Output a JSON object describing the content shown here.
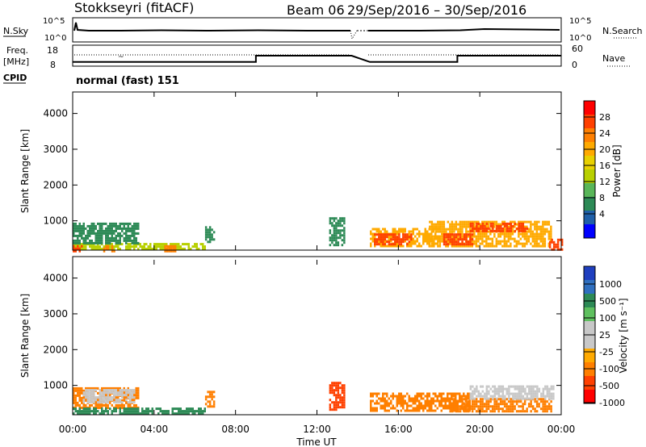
{
  "header": {
    "title": "Stokkseyri (fitACF)",
    "beam": "Beam 06",
    "date_range": "29/Sep/2016 – 30/Sep/2016"
  },
  "nsky_panel": {
    "left_label": "N.Sky",
    "left_ticks": [
      "10^5",
      "10^0"
    ],
    "right_ticks": [
      "10^5",
      "10^0"
    ],
    "right_label": "N.Search"
  },
  "freq_panel": {
    "left_label_1": "Freq.",
    "left_label_2": "[MHz]",
    "left_ticks": [
      "18",
      "8"
    ],
    "right_ticks": [
      "60",
      "0"
    ],
    "right_label": "Nave",
    "cpid_label": "CPID",
    "cpid_text": "normal (fast) 151"
  },
  "power_panel": {
    "ylabel": "Slant Range [km]",
    "yticks": [
      "4000",
      "3000",
      "2000",
      "1000"
    ],
    "colorbar_label": "Power [dB]",
    "colorbar_ticks": [
      "28",
      "24",
      "20",
      "16",
      "12",
      "8",
      "4"
    ],
    "colorbar_colors": [
      "#ff0000",
      "#ff4000",
      "#ff7f00",
      "#ffaa00",
      "#e8d000",
      "#b8d000",
      "#59b659",
      "#2d8a56",
      "#1f5fa8",
      "#0000ff"
    ]
  },
  "velocity_panel": {
    "ylabel": "Slant Range [km]",
    "yticks": [
      "4000",
      "3000",
      "2000",
      "1000"
    ],
    "colorbar_label": "Velocity [m s⁻¹]",
    "colorbar_ticks": [
      "1000",
      "500",
      "100",
      "25",
      "-25",
      "-100",
      "-500",
      "-1000"
    ],
    "colorbar_colors": [
      "#1f3fbf",
      "#2f6fbf",
      "#2d8a56",
      "#5fc05f",
      "#c8c8c8",
      "#c8c8c8",
      "#ffaa00",
      "#ff7f00",
      "#ff4000",
      "#ff0000"
    ]
  },
  "x_axis": {
    "tick_labels": [
      "00:00",
      "04:00",
      "08:00",
      "12:00",
      "16:00",
      "20:00",
      "00:00"
    ],
    "xlabel": "Time UT"
  },
  "chart_data": [
    {
      "type": "heatmap",
      "title": "Stokkseyri (fitACF) Beam 06 29/Sep/2016 – 30/Sep/2016",
      "xlabel": "Time UT",
      "ylabel": "Slant Range [km]",
      "xlim_hours": [
        0,
        24
      ],
      "ylim": [
        180,
        4600
      ],
      "colorbar": "Power [dB]",
      "colorbar_range": [
        0,
        30
      ],
      "regions": [
        {
          "t0": 0.0,
          "t1": 6.5,
          "r0": 180,
          "r1": 380,
          "value": 12
        },
        {
          "t0": 0.0,
          "t1": 3.2,
          "r0": 380,
          "r1": 950,
          "value": 8
        },
        {
          "t0": 0.0,
          "t1": 0.4,
          "r0": 180,
          "r1": 320,
          "value": 26
        },
        {
          "t0": 1.5,
          "t1": 2.0,
          "r0": 180,
          "r1": 320,
          "value": 22
        },
        {
          "t0": 4.5,
          "t1": 5.0,
          "r0": 180,
          "r1": 320,
          "value": 22
        },
        {
          "t0": 6.5,
          "t1": 6.9,
          "r0": 400,
          "r1": 850,
          "value": 8
        },
        {
          "t0": 12.6,
          "t1": 13.3,
          "r0": 350,
          "r1": 1100,
          "value": 8
        },
        {
          "t0": 14.6,
          "t1": 18.0,
          "r0": 280,
          "r1": 800,
          "value": 18
        },
        {
          "t0": 14.8,
          "t1": 16.6,
          "r0": 350,
          "r1": 650,
          "value": 26
        },
        {
          "t0": 17.5,
          "t1": 23.5,
          "r0": 300,
          "r1": 1000,
          "value": 18
        },
        {
          "t0": 18.2,
          "t1": 19.6,
          "r0": 350,
          "r1": 650,
          "value": 24
        },
        {
          "t0": 19.5,
          "t1": 22.3,
          "r0": 700,
          "r1": 950,
          "value": 26
        },
        {
          "t0": 23.4,
          "t1": 24.0,
          "r0": 180,
          "r1": 500,
          "value": 24
        }
      ]
    },
    {
      "type": "heatmap",
      "xlabel": "Time UT",
      "ylabel": "Slant Range [km]",
      "xlim_hours": [
        0,
        24
      ],
      "ylim": [
        180,
        4600
      ],
      "colorbar": "Velocity [m s⁻¹]",
      "colorbar_range": [
        -1000,
        1000
      ],
      "regions": [
        {
          "t0": 0.0,
          "t1": 3.2,
          "r0": 400,
          "r1": 950,
          "value": -100
        },
        {
          "t0": 0.5,
          "t1": 3.0,
          "r0": 500,
          "r1": 900,
          "value": 0
        },
        {
          "t0": 0.0,
          "t1": 6.5,
          "r0": 180,
          "r1": 380,
          "value": 100
        },
        {
          "t0": 6.5,
          "t1": 6.9,
          "r0": 400,
          "r1": 850,
          "value": -100
        },
        {
          "t0": 12.6,
          "t1": 13.3,
          "r0": 350,
          "r1": 1100,
          "value": -500
        },
        {
          "t0": 14.6,
          "t1": 19.5,
          "r0": 280,
          "r1": 800,
          "value": -100
        },
        {
          "t0": 18.5,
          "t1": 23.5,
          "r0": 300,
          "r1": 650,
          "value": -100
        },
        {
          "t0": 19.5,
          "t1": 23.6,
          "r0": 650,
          "r1": 1000,
          "value": 0
        }
      ]
    },
    {
      "type": "line",
      "name": "CPID frequency",
      "xlim_hours": [
        0,
        24
      ],
      "ylim": [
        8,
        18
      ],
      "x": [
        0,
        9,
        9,
        13.7,
        14.6,
        18.9,
        18.9,
        24
      ],
      "y": [
        10,
        10,
        13,
        13,
        10,
        10,
        13,
        13
      ]
    }
  ]
}
